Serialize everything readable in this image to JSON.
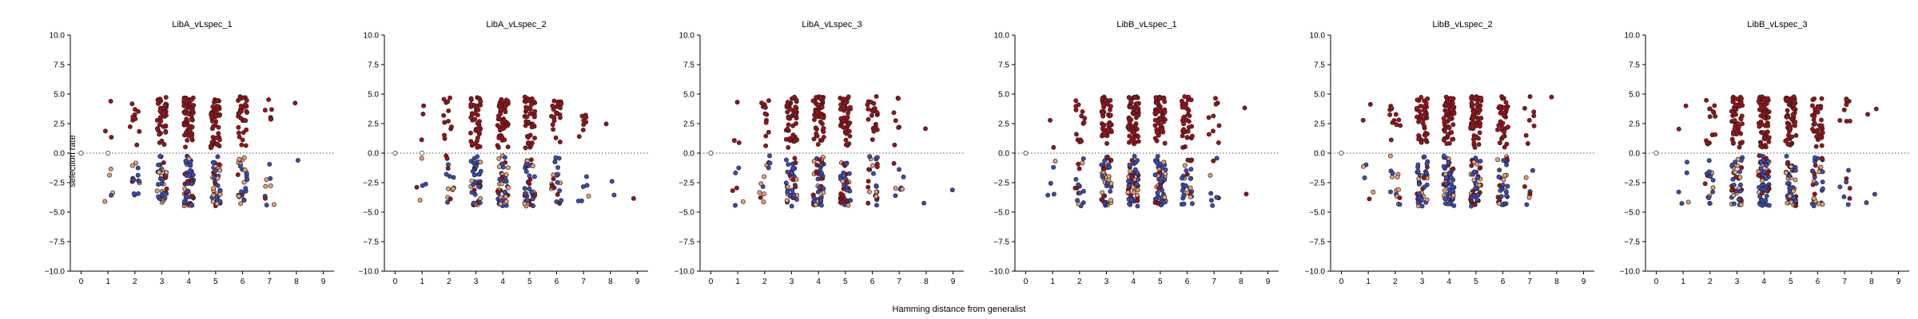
{
  "chart_data": {
    "type": "scatter",
    "xlabel": "Hamming distance from generalist",
    "ylabel": "selection rate",
    "xlim": [
      -0.4,
      9.4
    ],
    "ylim": [
      -10,
      10
    ],
    "x_ticks": [
      "0",
      "1",
      "2",
      "3",
      "4",
      "5",
      "6",
      "7",
      "8",
      "9"
    ],
    "y_ticks": [
      "10.0",
      "7.5",
      "5.0",
      "2.5",
      "0.0",
      "−2.5",
      "−5.0",
      "−7.5",
      "−10.0"
    ],
    "reference_line": 0,
    "colors": {
      "high": "#a50f15",
      "mid": "#f0a070",
      "low": "#3b4cc0",
      "zero": "#ffffff",
      "edge": "#222222"
    },
    "panels": [
      {
        "title": "LibA_vLspec_1",
        "jitter": 0.18,
        "n_scale": 1.0,
        "groups": [
          {
            "x": 0,
            "pos": 0,
            "neg": 0,
            "zero": 1
          },
          {
            "x": 1,
            "pos": 3,
            "neg": 5,
            "zero": 1
          },
          {
            "x": 2,
            "pos": 10,
            "neg": 14
          },
          {
            "x": 3,
            "pos": 42,
            "neg": 38
          },
          {
            "x": 4,
            "pos": 60,
            "neg": 52
          },
          {
            "x": 5,
            "pos": 48,
            "neg": 44
          },
          {
            "x": 6,
            "pos": 30,
            "neg": 28
          },
          {
            "x": 7,
            "pos": 6,
            "neg": 9
          },
          {
            "x": 8,
            "pos": 1,
            "neg": 1
          }
        ]
      },
      {
        "title": "LibA_vLspec_2",
        "jitter": 0.2,
        "n_scale": 1.0,
        "groups": [
          {
            "x": 0,
            "pos": 0,
            "neg": 0,
            "zero": 1
          },
          {
            "x": 1,
            "pos": 3,
            "neg": 5,
            "zero": 1
          },
          {
            "x": 2,
            "pos": 12,
            "neg": 14
          },
          {
            "x": 3,
            "pos": 46,
            "neg": 40
          },
          {
            "x": 4,
            "pos": 58,
            "neg": 50
          },
          {
            "x": 5,
            "pos": 45,
            "neg": 40
          },
          {
            "x": 6,
            "pos": 24,
            "neg": 22
          },
          {
            "x": 7,
            "pos": 8,
            "neg": 6
          },
          {
            "x": 8,
            "pos": 1,
            "neg": 2
          },
          {
            "x": 9,
            "pos": 0,
            "neg": 1
          }
        ]
      },
      {
        "title": "LibA_vLspec_3",
        "jitter": 0.2,
        "n_scale": 1.0,
        "groups": [
          {
            "x": 0,
            "pos": 0,
            "neg": 0,
            "zero": 1
          },
          {
            "x": 1,
            "pos": 3,
            "neg": 6
          },
          {
            "x": 2,
            "pos": 12,
            "neg": 12
          },
          {
            "x": 3,
            "pos": 44,
            "neg": 40
          },
          {
            "x": 4,
            "pos": 58,
            "neg": 50
          },
          {
            "x": 5,
            "pos": 46,
            "neg": 42
          },
          {
            "x": 6,
            "pos": 24,
            "neg": 24
          },
          {
            "x": 7,
            "pos": 7,
            "neg": 8
          },
          {
            "x": 8,
            "pos": 1,
            "neg": 1
          },
          {
            "x": 9,
            "pos": 0,
            "neg": 1
          }
        ]
      },
      {
        "title": "LibB_vLspec_1",
        "jitter": 0.2,
        "n_scale": 1.0,
        "groups": [
          {
            "x": 0,
            "pos": 0,
            "neg": 0,
            "zero": 1
          },
          {
            "x": 1,
            "pos": 2,
            "neg": 5
          },
          {
            "x": 2,
            "pos": 14,
            "neg": 16
          },
          {
            "x": 3,
            "pos": 46,
            "neg": 44
          },
          {
            "x": 4,
            "pos": 62,
            "neg": 56
          },
          {
            "x": 5,
            "pos": 56,
            "neg": 52
          },
          {
            "x": 6,
            "pos": 36,
            "neg": 32
          },
          {
            "x": 7,
            "pos": 9,
            "neg": 8
          },
          {
            "x": 8,
            "pos": 1,
            "neg": 1
          }
        ]
      },
      {
        "title": "LibB_vLspec_2",
        "jitter": 0.2,
        "n_scale": 1.0,
        "groups": [
          {
            "x": 0,
            "pos": 0,
            "neg": 0,
            "zero": 1
          },
          {
            "x": 1,
            "pos": 2,
            "neg": 5
          },
          {
            "x": 2,
            "pos": 12,
            "neg": 14
          },
          {
            "x": 3,
            "pos": 44,
            "neg": 44
          },
          {
            "x": 4,
            "pos": 62,
            "neg": 58
          },
          {
            "x": 5,
            "pos": 58,
            "neg": 54
          },
          {
            "x": 6,
            "pos": 36,
            "neg": 34
          },
          {
            "x": 7,
            "pos": 8,
            "neg": 8
          },
          {
            "x": 8,
            "pos": 1,
            "neg": 0
          }
        ]
      },
      {
        "title": "LibB_vLspec_3",
        "jitter": 0.2,
        "n_scale": 1.0,
        "groups": [
          {
            "x": 0,
            "pos": 0,
            "neg": 0,
            "zero": 1
          },
          {
            "x": 1,
            "pos": 2,
            "neg": 5
          },
          {
            "x": 2,
            "pos": 14,
            "neg": 16
          },
          {
            "x": 3,
            "pos": 48,
            "neg": 46
          },
          {
            "x": 4,
            "pos": 64,
            "neg": 60
          },
          {
            "x": 5,
            "pos": 58,
            "neg": 54
          },
          {
            "x": 6,
            "pos": 36,
            "neg": 32
          },
          {
            "x": 7,
            "pos": 9,
            "neg": 8
          },
          {
            "x": 8,
            "pos": 2,
            "neg": 2
          }
        ]
      }
    ]
  }
}
